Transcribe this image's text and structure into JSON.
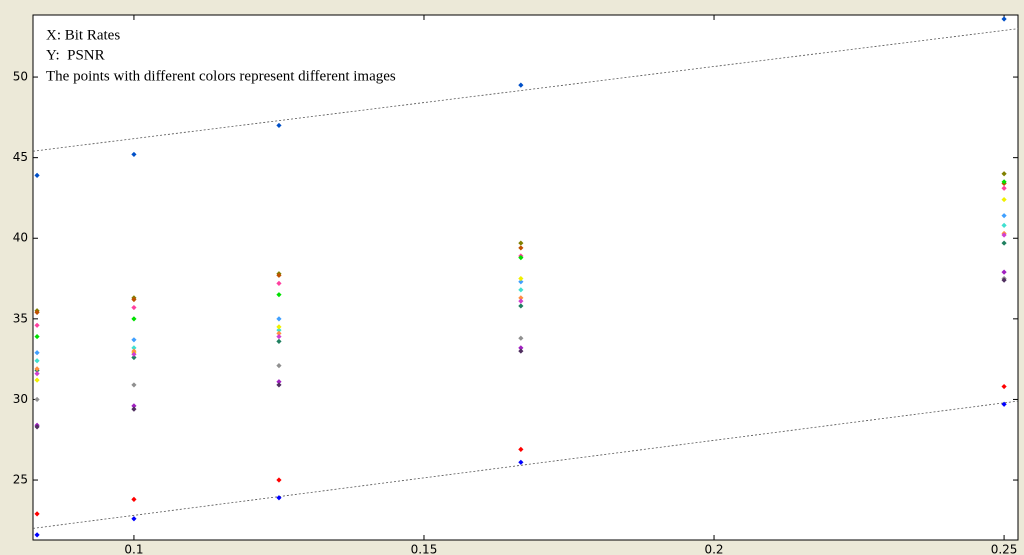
{
  "chart_data": {
    "type": "scatter",
    "annotations": [
      "X: Bit Rates",
      "Y:  PSNR",
      "The points with different colors represent different images"
    ],
    "x": [
      0.0833,
      0.1,
      0.125,
      0.1667,
      0.25
    ],
    "series": [
      {
        "color": "#0050c8",
        "values": [
          43.9,
          45.2,
          47.0,
          49.5,
          53.6
        ]
      },
      {
        "color": "#0000ff",
        "values": [
          21.6,
          22.6,
          23.9,
          26.1,
          29.7
        ]
      },
      {
        "color": "#ff0000",
        "values": [
          22.9,
          23.8,
          25.0,
          26.9,
          30.8
        ]
      },
      {
        "color": "#808000",
        "values": [
          35.5,
          36.3,
          37.8,
          39.7,
          44.0
        ]
      },
      {
        "color": "#c05000",
        "values": [
          35.4,
          36.2,
          37.7,
          39.4,
          43.4
        ]
      },
      {
        "color": "#ff40a0",
        "values": [
          34.6,
          35.7,
          37.2,
          38.9,
          43.1
        ]
      },
      {
        "color": "#00e000",
        "values": [
          33.9,
          35.0,
          36.5,
          38.8,
          43.5
        ]
      },
      {
        "color": "#40a0ff",
        "values": [
          32.9,
          33.7,
          35.0,
          37.3,
          41.4
        ]
      },
      {
        "color": "#40e0d0",
        "values": [
          32.4,
          33.2,
          34.3,
          36.8,
          40.8
        ]
      },
      {
        "color": "#208060",
        "values": [
          31.8,
          32.6,
          33.6,
          35.8,
          39.7
        ]
      },
      {
        "color": "#f0f000",
        "values": [
          31.2,
          32.9,
          34.5,
          37.5,
          42.4
        ]
      },
      {
        "color": "#ff9040",
        "values": [
          31.9,
          33.0,
          34.1,
          36.3,
          40.3
        ]
      },
      {
        "color": "#d040d0",
        "values": [
          31.6,
          32.8,
          33.9,
          36.1,
          40.2
        ]
      },
      {
        "color": "#909090",
        "values": [
          30.0,
          30.9,
          32.1,
          33.8,
          37.5
        ]
      },
      {
        "color": "#a020c0",
        "values": [
          28.4,
          29.6,
          31.1,
          33.2,
          37.9
        ]
      },
      {
        "color": "#503060",
        "values": [
          28.3,
          29.4,
          30.9,
          33.0,
          37.4
        ]
      }
    ],
    "trend_lines": [
      {
        "color": "#555555",
        "x": [
          0.0826,
          0.2524
        ],
        "y": [
          45.4,
          53.0
        ]
      },
      {
        "color": "#555555",
        "x": [
          0.0826,
          0.2524
        ],
        "y": [
          22.0,
          29.9
        ]
      }
    ],
    "xlim": [
      0.0826,
      0.2524
    ],
    "ylim": [
      21.28,
      53.85
    ],
    "xticks": [
      0.1,
      0.15,
      0.2,
      0.25
    ],
    "yticks": [
      25,
      30,
      35,
      40,
      45,
      50
    ]
  }
}
